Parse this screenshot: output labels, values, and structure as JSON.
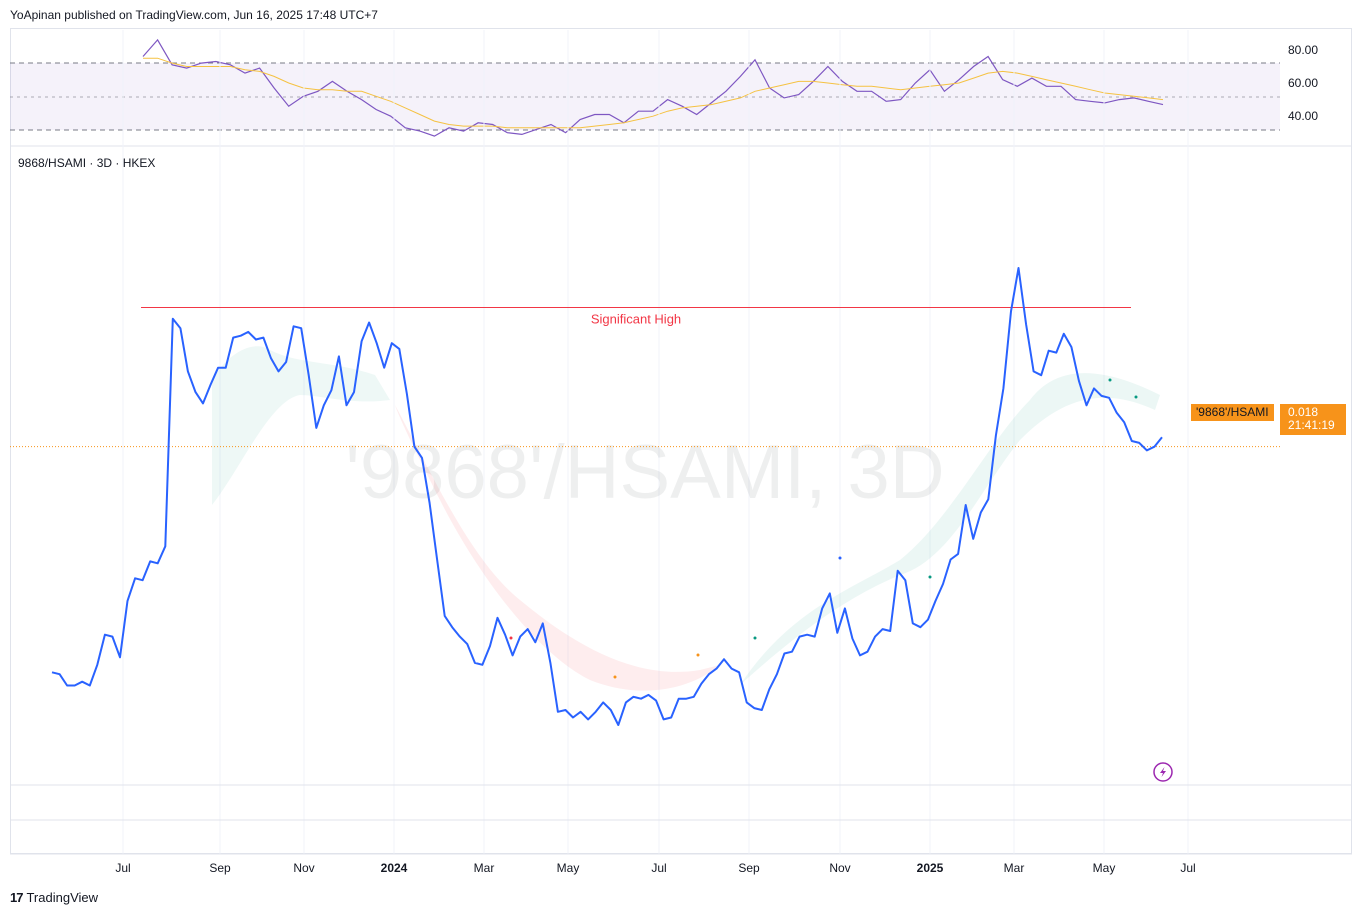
{
  "header": {
    "published": "YoApinan published on TradingView.com, Jun 16, 2025 17:48 UTC+7"
  },
  "symbol_line": "9868/HSAMI · 3D · HKEX",
  "watermark": "'9868'/HSAMI, 3D",
  "annotation": "Significant High",
  "price_tag": {
    "symbol": "'9868'/HSAMI",
    "value": "0.018",
    "countdown": "21:41:19"
  },
  "footer": {
    "brand": "TradingView"
  },
  "colors": {
    "price_line": "#2962ff",
    "rsi_line": "#7e57c2",
    "rsi_ma": "#f5c242",
    "significant_high": "#f23645",
    "price_tag": "#f7931a"
  },
  "icons": {
    "flash": "lightning-icon",
    "logo": "tradingview-logo-icon"
  },
  "chart_data": [
    {
      "type": "line",
      "name": "RSI panel",
      "y_ticks": [
        "80.00",
        "60.00",
        "40.00"
      ],
      "ylim": [
        22,
        92
      ],
      "bands": [
        70,
        50,
        30
      ],
      "x": [
        0,
        1,
        2,
        3,
        4,
        5,
        6,
        7,
        8,
        9,
        10,
        11,
        12,
        13,
        14,
        15,
        16,
        17,
        18,
        19,
        20,
        21,
        22,
        23,
        24,
        25,
        26,
        27,
        28,
        29,
        30,
        31,
        32,
        33,
        34,
        35,
        36,
        37,
        38,
        39,
        40,
        41,
        42,
        43,
        44,
        45,
        46,
        47,
        48,
        49,
        50,
        51,
        52,
        53,
        54,
        55,
        56,
        57,
        58,
        59,
        60,
        61,
        62,
        63,
        64,
        65,
        66,
        67,
        68,
        69,
        70
      ],
      "series": [
        {
          "values": [
            76,
            86,
            71,
            69,
            72,
            73,
            71,
            66,
            69,
            57,
            46,
            52,
            55,
            61,
            55,
            50,
            44,
            40,
            33,
            31,
            28,
            33,
            31,
            36,
            35,
            30,
            29,
            32,
            35,
            30,
            38,
            41,
            41,
            36,
            43,
            43,
            50,
            46,
            41,
            48,
            55,
            64,
            74,
            57,
            51,
            53,
            61,
            70,
            61,
            55,
            55,
            49,
            50,
            60,
            68,
            55,
            62,
            70,
            76,
            62,
            58,
            63,
            58,
            58,
            50,
            49,
            48,
            50,
            51,
            49,
            47
          ]
        },
        {
          "values": [
            75,
            75,
            72,
            70,
            70,
            70,
            70,
            68,
            67,
            64,
            60,
            57,
            56,
            56,
            55,
            55,
            52,
            49,
            45,
            41,
            37,
            35,
            34,
            34,
            34,
            33,
            33,
            33,
            33,
            33,
            33,
            34,
            35,
            36,
            38,
            40,
            43,
            45,
            46,
            47,
            49,
            51,
            55,
            57,
            59,
            61,
            61,
            60,
            59,
            58,
            58,
            57,
            56,
            57,
            58,
            59,
            60,
            63,
            66,
            67,
            66,
            64,
            62,
            60,
            58,
            56,
            54,
            53,
            52,
            51,
            50
          ]
        }
      ]
    },
    {
      "type": "line",
      "name": "Price panel",
      "x_ticks": [
        "Jul",
        "Sep",
        "Nov",
        "2024",
        "Mar",
        "May",
        "Jul",
        "Sep",
        "Nov",
        "2025",
        "Mar",
        "May",
        "Jul"
      ],
      "values": [
        0.006,
        0.0059,
        0.0053,
        0.0053,
        0.0055,
        0.0053,
        0.0064,
        0.008,
        0.0079,
        0.0068,
        0.0098,
        0.011,
        0.0109,
        0.0119,
        0.0118,
        0.0127,
        0.0248,
        0.0243,
        0.022,
        0.0209,
        0.0203,
        0.0213,
        0.0222,
        0.0222,
        0.0238,
        0.0239,
        0.0241,
        0.0237,
        0.0238,
        0.0227,
        0.022,
        0.0225,
        0.0244,
        0.0243,
        0.0218,
        0.019,
        0.0202,
        0.021,
        0.0228,
        0.0202,
        0.0209,
        0.0236,
        0.0246,
        0.0235,
        0.0222,
        0.0235,
        0.0232,
        0.0208,
        0.018,
        0.0174,
        0.015,
        0.012,
        0.009,
        0.0084,
        0.0079,
        0.0075,
        0.0065,
        0.0064,
        0.0074,
        0.0089,
        0.008,
        0.0069,
        0.0079,
        0.0083,
        0.0076,
        0.0086,
        0.0065,
        0.0039,
        0.004,
        0.0036,
        0.0039,
        0.0035,
        0.0039,
        0.0044,
        0.004,
        0.0032,
        0.0044,
        0.0047,
        0.0046,
        0.0048,
        0.0045,
        0.0035,
        0.0036,
        0.0046,
        0.0046,
        0.0047,
        0.0054,
        0.0059,
        0.0062,
        0.0067,
        0.0062,
        0.006,
        0.0044,
        0.0041,
        0.004,
        0.0051,
        0.0059,
        0.007,
        0.0071,
        0.0079,
        0.008,
        0.0079,
        0.0094,
        0.0102,
        0.0081,
        0.0094,
        0.0078,
        0.0069,
        0.0071,
        0.0079,
        0.0083,
        0.0082,
        0.0114,
        0.0109,
        0.0086,
        0.0084,
        0.0088,
        0.0098,
        0.0107,
        0.012,
        0.0123,
        0.0149,
        0.0131,
        0.0145,
        0.0152,
        0.0186,
        0.0211,
        0.0252,
        0.0275,
        0.0245,
        0.022,
        0.0218,
        0.0231,
        0.023,
        0.024,
        0.0233,
        0.0215,
        0.0202,
        0.0211,
        0.0207,
        0.0206,
        0.0198,
        0.0193,
        0.0183,
        0.0182,
        0.0178,
        0.018,
        0.0185
      ],
      "significant_high": 0.0254,
      "last": 0.018
    }
  ]
}
